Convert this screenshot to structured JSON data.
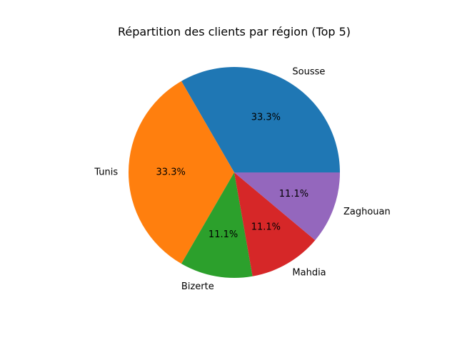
{
  "chart_data": {
    "type": "pie",
    "title": "Répartition des clients par région (Top 5)",
    "categories": [
      "Sousse",
      "Tunis",
      "Bizerte",
      "Mahdia",
      "Zaghouan"
    ],
    "values": [
      33.3,
      33.3,
      11.1,
      11.1,
      11.1
    ],
    "value_labels": [
      "33.3%",
      "33.3%",
      "11.1%",
      "11.1%",
      "11.1%"
    ],
    "colors": [
      "#1f77b4",
      "#ff7f0e",
      "#2ca02c",
      "#d62728",
      "#9467bd"
    ],
    "start_angle_deg": 0,
    "direction": "counterclockwise",
    "legend": "none"
  }
}
